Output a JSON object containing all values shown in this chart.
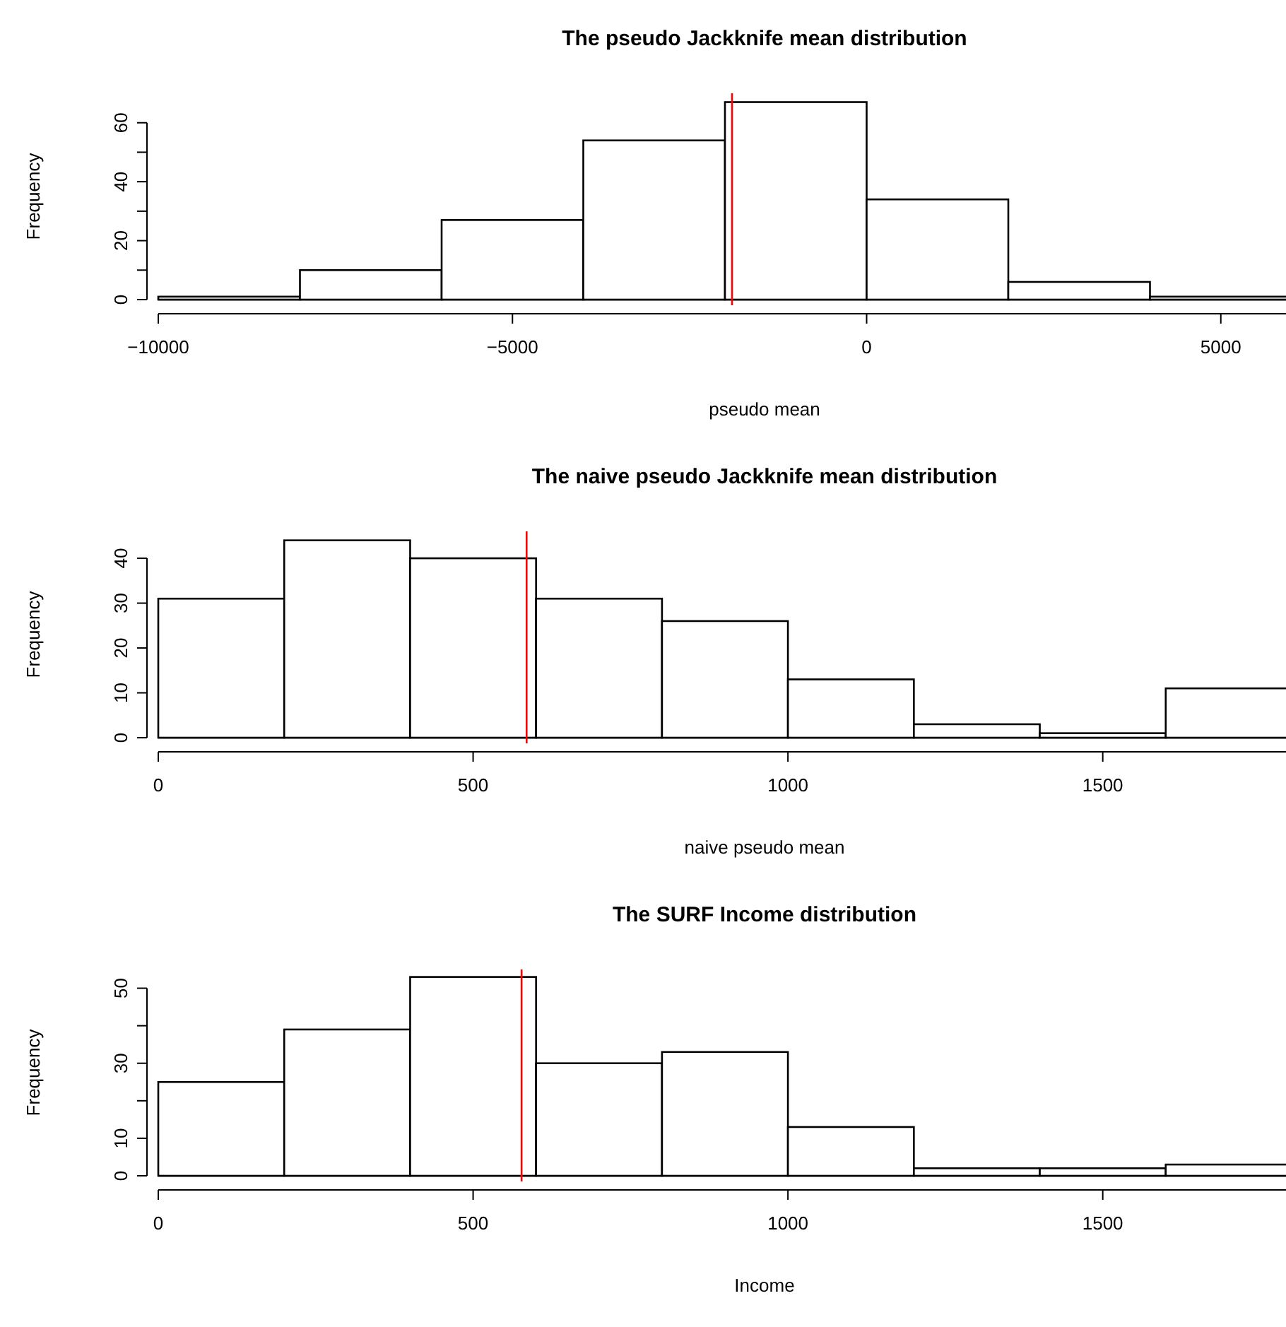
{
  "chart_data": [
    {
      "type": "histogram",
      "title": "The pseudo Jackknife mean distribution",
      "xlabel": "pseudo mean",
      "ylabel": "Frequency",
      "bins": [
        -10000,
        -8000,
        -6000,
        -4000,
        -2000,
        0,
        2000,
        4000,
        6000
      ],
      "values": [
        1,
        10,
        27,
        54,
        67,
        34,
        6,
        1
      ],
      "color": "#ffffff",
      "xlim": [
        -10000,
        6000
      ],
      "xticks": [
        -10000,
        -5000,
        0,
        5000
      ],
      "ylim": [
        0,
        70
      ],
      "yticks": [
        0,
        {
          "value": 10,
          "label": null
        },
        20,
        {
          "value": 30,
          "label": null
        },
        40,
        {
          "value": 50,
          "label": null
        },
        60
      ],
      "ref_lines": [
        {
          "axis": "x",
          "value": -1900,
          "color": "#ff0000"
        }
      ]
    },
    {
      "type": "histogram",
      "title": "The naive pseudo Jackknife mean distribution",
      "xlabel": "naive pseudo mean",
      "ylabel": "Frequency",
      "bins": [
        0,
        200,
        400,
        600,
        800,
        1000,
        1200,
        1400,
        1600,
        1800
      ],
      "values": [
        31,
        44,
        40,
        31,
        26,
        13,
        3,
        1,
        11
      ],
      "color": "#ffffff",
      "xlim": [
        0,
        1800
      ],
      "xticks": [
        0,
        500,
        1000,
        1500
      ],
      "ylim": [
        0,
        46
      ],
      "yticks": [
        0,
        10,
        20,
        30,
        40
      ],
      "ref_lines": [
        {
          "axis": "x",
          "value": 585,
          "color": "#ff0000"
        }
      ]
    },
    {
      "type": "histogram",
      "title": "The SURF Income distribution",
      "xlabel": "Income",
      "ylabel": "Frequency",
      "bins": [
        0,
        200,
        400,
        600,
        800,
        1000,
        1200,
        1400,
        1600,
        1800
      ],
      "values": [
        25,
        39,
        53,
        30,
        33,
        13,
        2,
        2,
        3
      ],
      "color": "#ffffff",
      "xlim": [
        0,
        1800
      ],
      "xticks": [
        0,
        500,
        1000,
        1500
      ],
      "ylim": [
        0,
        55
      ],
      "yticks": [
        0,
        10,
        {
          "value": 20,
          "label": null
        },
        30,
        {
          "value": 40,
          "label": null
        },
        50
      ],
      "ref_lines": [
        {
          "axis": "x",
          "value": 577,
          "color": "#ff0000"
        }
      ]
    }
  ]
}
